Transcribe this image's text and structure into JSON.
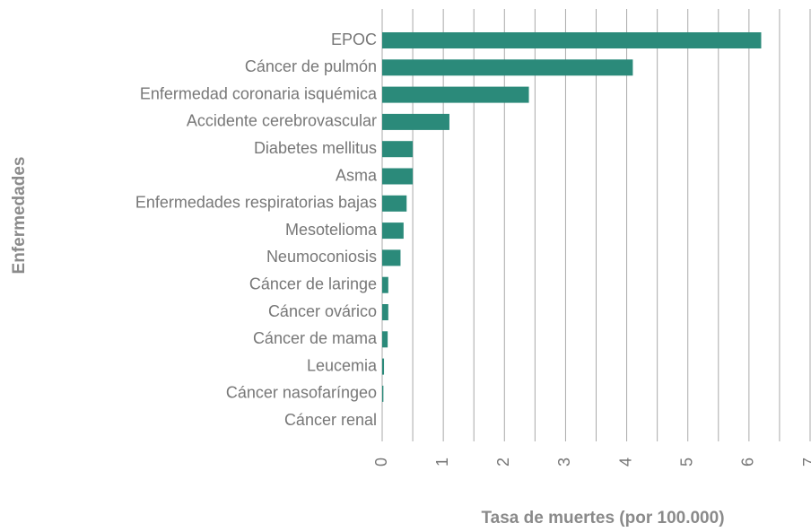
{
  "chart_data": {
    "type": "bar",
    "orientation": "horizontal",
    "xlabel": "Tasa de muertes (por 100.000)",
    "ylabel": "Enfermedades",
    "categories": [
      "EPOC",
      "Cáncer de pulmón",
      "Enfermedad coronaria isquémica",
      "Accidente cerebrovascular",
      "Diabetes mellitus",
      "Asma",
      "Enfermedades respiratorias bajas",
      "Mesotelioma",
      "Neumoconiosis",
      "Cáncer de laringe",
      "Cáncer ovárico",
      "Cáncer de mama",
      "Leucemia",
      "Cáncer nasofaríngeo",
      "Cáncer renal"
    ],
    "values": [
      6.2,
      4.1,
      2.4,
      1.1,
      0.5,
      0.5,
      0.4,
      0.35,
      0.3,
      0.1,
      0.1,
      0.09,
      0.03,
      0.02,
      0
    ],
    "color": "#2b8a7a",
    "xlim": [
      0,
      7
    ],
    "xticks": [
      0,
      1,
      2,
      3,
      4,
      5,
      6,
      7
    ],
    "grid": true,
    "minor_grid": true
  }
}
